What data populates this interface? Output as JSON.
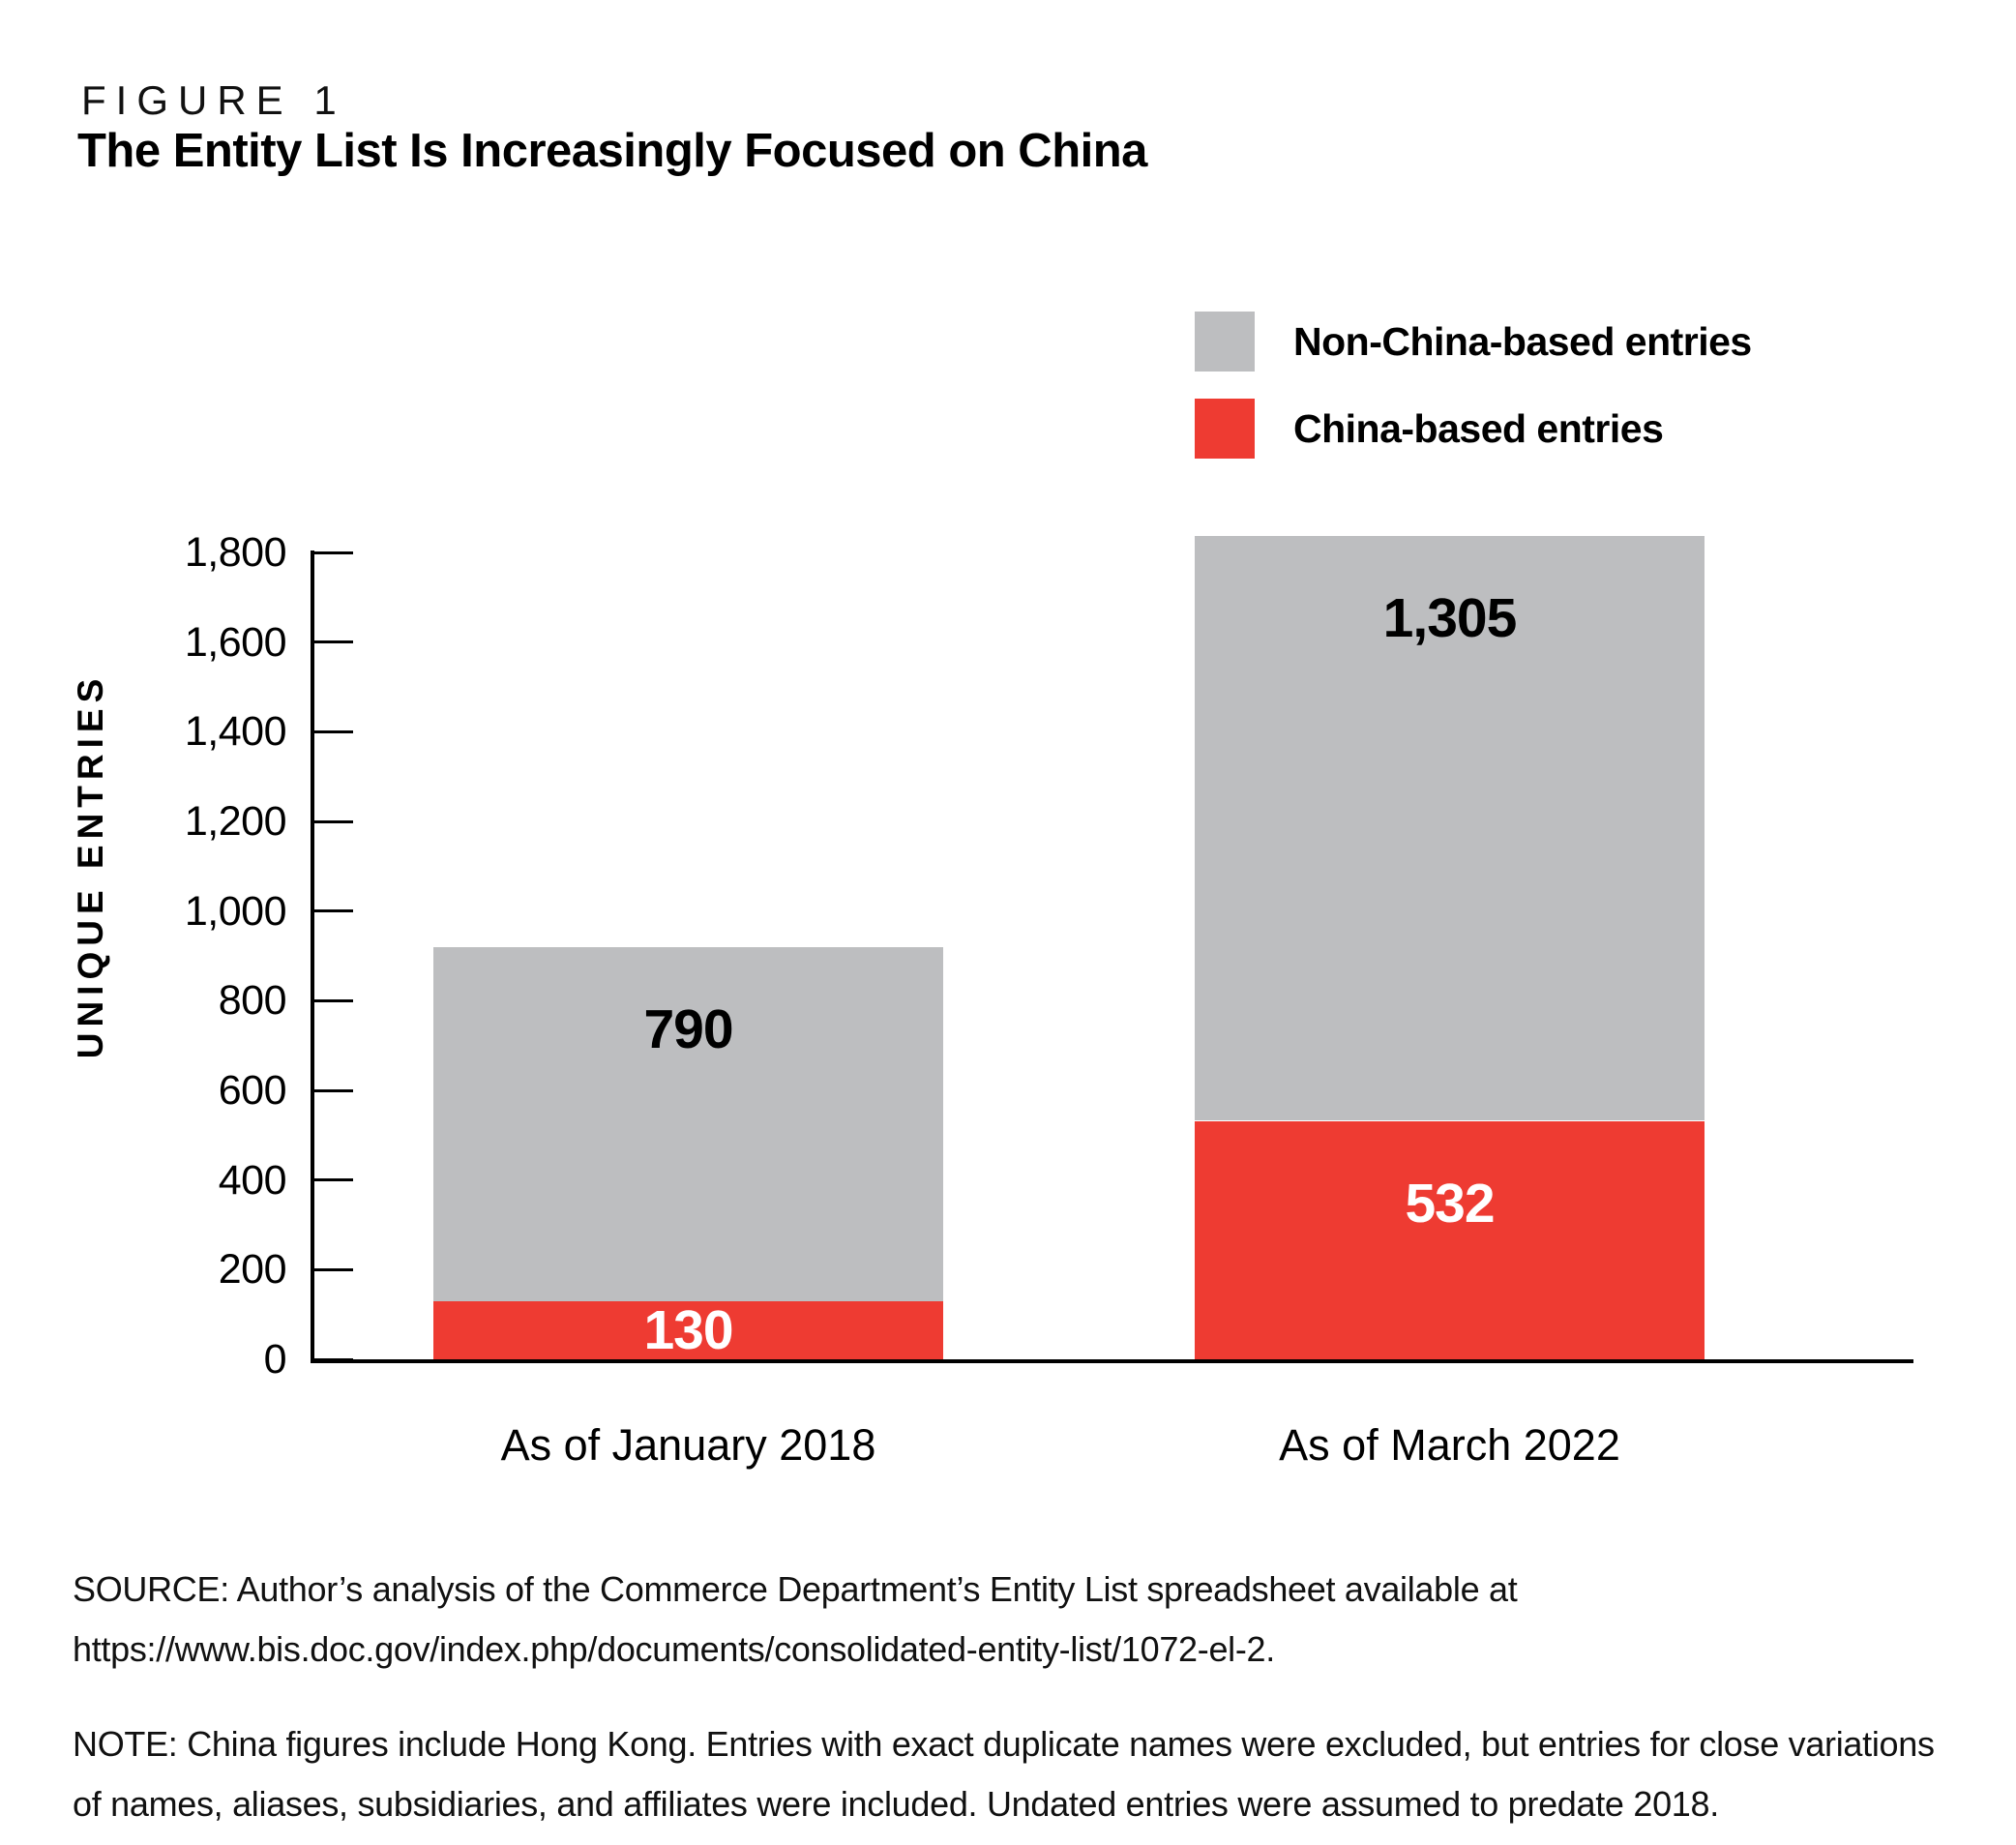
{
  "figure_label": "FIGURE 1",
  "title": "The Entity List Is Increasingly Focused on China",
  "legend": {
    "items": [
      {
        "label": "Non-China-based entries",
        "color": "#bdbec0"
      },
      {
        "label": "China-based entries",
        "color": "#ee3b32"
      }
    ]
  },
  "chart_data": {
    "type": "bar",
    "stacked": true,
    "figure_label": "FIGURE 1",
    "title": "The Entity List Is Increasingly Focused on China",
    "categories": [
      "As of January 2018",
      "As of March 2022"
    ],
    "series": [
      {
        "name": "Non-China-based entries",
        "values": [
          790,
          1305
        ],
        "color": "#bdbec0",
        "label_color": "#000000"
      },
      {
        "name": "China-based entries",
        "values": [
          130,
          532
        ],
        "color": "#ee3b32",
        "label_color": "#ffffff"
      }
    ],
    "xlabel": "",
    "ylabel": "UNIQUE ENTRIES",
    "ylim": [
      0,
      1800
    ],
    "ytick_step": 200,
    "yticks": [
      0,
      200,
      400,
      600,
      800,
      1000,
      1200,
      1400,
      1600,
      1800
    ],
    "grid": false,
    "legend_position": "top-right",
    "axis_color": "#000000"
  },
  "source": {
    "lines": [
      "SOURCE: Author’s analysis of the Commerce Department’s Entity List spreadsheet available at",
      "https://www.bis.doc.gov/index.php/documents/consolidated-entity-list/1072-el-2."
    ]
  },
  "note": {
    "lines": [
      "NOTE: China figures include Hong Kong. Entries with exact duplicate names were excluded, but entries for close variations",
      "of names, aliases, subsidiaries, and affiliates were included. Undated entries were assumed to predate 2018."
    ]
  }
}
